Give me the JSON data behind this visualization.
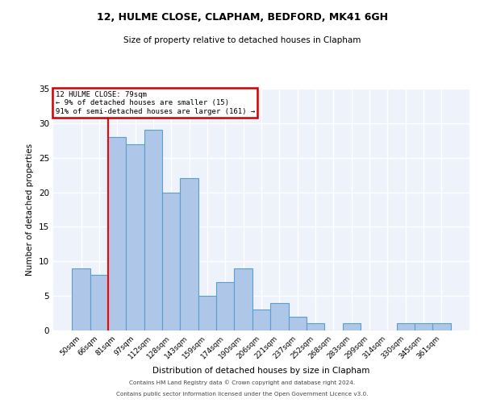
{
  "title1": "12, HULME CLOSE, CLAPHAM, BEDFORD, MK41 6GH",
  "title2": "Size of property relative to detached houses in Clapham",
  "xlabel": "Distribution of detached houses by size in Clapham",
  "ylabel": "Number of detached properties",
  "categories": [
    "50sqm",
    "66sqm",
    "81sqm",
    "97sqm",
    "112sqm",
    "128sqm",
    "143sqm",
    "159sqm",
    "174sqm",
    "190sqm",
    "206sqm",
    "221sqm",
    "237sqm",
    "252sqm",
    "268sqm",
    "283sqm",
    "299sqm",
    "314sqm",
    "330sqm",
    "345sqm",
    "361sqm"
  ],
  "values": [
    9,
    8,
    28,
    27,
    29,
    20,
    22,
    5,
    7,
    9,
    3,
    4,
    2,
    1,
    0,
    1,
    0,
    0,
    1,
    1,
    1
  ],
  "bar_color": "#aec6e8",
  "bar_edge_color": "#5a9fd4",
  "red_line_index": 2,
  "annotation_text": "12 HULME CLOSE: 79sqm\n← 9% of detached houses are smaller (15)\n91% of semi-detached houses are larger (161) →",
  "annotation_box_color": "#ffffff",
  "annotation_border_color": "#cc0000",
  "ylim": [
    0,
    35
  ],
  "yticks": [
    0,
    5,
    10,
    15,
    20,
    25,
    30,
    35
  ],
  "bg_color": "#eef2fa",
  "grid_color": "#ffffff",
  "footer_text1": "Contains HM Land Registry data © Crown copyright and database right 2024.",
  "footer_text2": "Contains public sector information licensed under the Open Government Licence v3.0."
}
